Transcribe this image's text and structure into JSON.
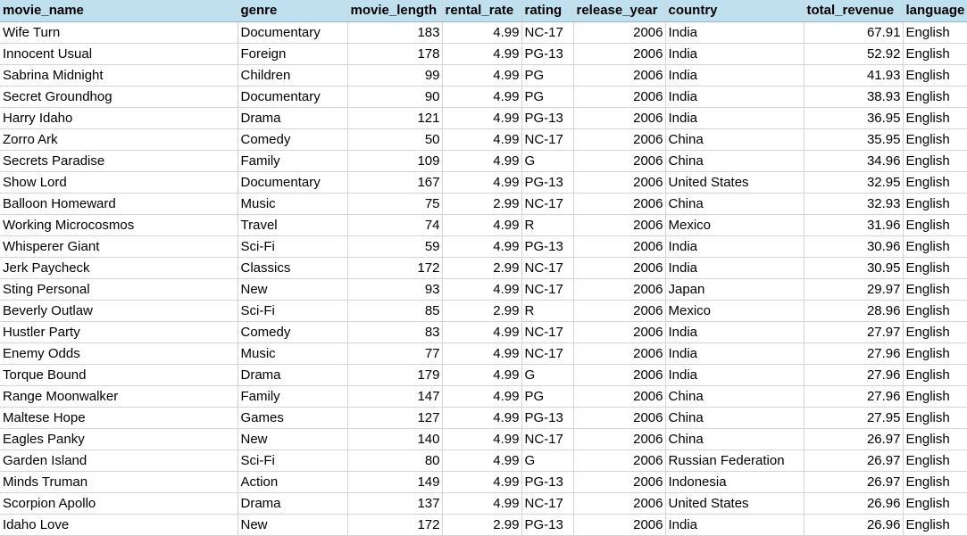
{
  "columns": [
    "movie_name",
    "genre",
    "movie_length",
    "rental_rate",
    "rating",
    "release_year",
    "country",
    "total_revenue",
    "language"
  ],
  "rows": [
    [
      "Wife Turn",
      "Documentary",
      "183",
      "4.99",
      "NC-17",
      "2006",
      "India",
      "67.91",
      "English"
    ],
    [
      "Innocent Usual",
      "Foreign",
      "178",
      "4.99",
      "PG-13",
      "2006",
      "India",
      "52.92",
      "English"
    ],
    [
      "Sabrina Midnight",
      "Children",
      "99",
      "4.99",
      "PG",
      "2006",
      "India",
      "41.93",
      "English"
    ],
    [
      "Secret Groundhog",
      "Documentary",
      "90",
      "4.99",
      "PG",
      "2006",
      "India",
      "38.93",
      "English"
    ],
    [
      "Harry Idaho",
      "Drama",
      "121",
      "4.99",
      "PG-13",
      "2006",
      "India",
      "36.95",
      "English"
    ],
    [
      "Zorro Ark",
      "Comedy",
      "50",
      "4.99",
      "NC-17",
      "2006",
      "China",
      "35.95",
      "English"
    ],
    [
      "Secrets Paradise",
      "Family",
      "109",
      "4.99",
      "G",
      "2006",
      "China",
      "34.96",
      "English"
    ],
    [
      "Show Lord",
      "Documentary",
      "167",
      "4.99",
      "PG-13",
      "2006",
      "United States",
      "32.95",
      "English"
    ],
    [
      "Balloon Homeward",
      "Music",
      "75",
      "2.99",
      "NC-17",
      "2006",
      "China",
      "32.93",
      "English"
    ],
    [
      "Working Microcosmos",
      "Travel",
      "74",
      "4.99",
      "R",
      "2006",
      "Mexico",
      "31.96",
      "English"
    ],
    [
      "Whisperer Giant",
      "Sci-Fi",
      "59",
      "4.99",
      "PG-13",
      "2006",
      "India",
      "30.96",
      "English"
    ],
    [
      "Jerk Paycheck",
      "Classics",
      "172",
      "2.99",
      "NC-17",
      "2006",
      "India",
      "30.95",
      "English"
    ],
    [
      "Sting Personal",
      "New",
      "93",
      "4.99",
      "NC-17",
      "2006",
      "Japan",
      "29.97",
      "English"
    ],
    [
      "Beverly Outlaw",
      "Sci-Fi",
      "85",
      "2.99",
      "R",
      "2006",
      "Mexico",
      "28.96",
      "English"
    ],
    [
      "Hustler Party",
      "Comedy",
      "83",
      "4.99",
      "NC-17",
      "2006",
      "India",
      "27.97",
      "English"
    ],
    [
      "Enemy Odds",
      "Music",
      "77",
      "4.99",
      "NC-17",
      "2006",
      "India",
      "27.96",
      "English"
    ],
    [
      "Torque Bound",
      "Drama",
      "179",
      "4.99",
      "G",
      "2006",
      "India",
      "27.96",
      "English"
    ],
    [
      "Range Moonwalker",
      "Family",
      "147",
      "4.99",
      "PG",
      "2006",
      "China",
      "27.96",
      "English"
    ],
    [
      "Maltese Hope",
      "Games",
      "127",
      "4.99",
      "PG-13",
      "2006",
      "China",
      "27.95",
      "English"
    ],
    [
      "Eagles Panky",
      "New",
      "140",
      "4.99",
      "NC-17",
      "2006",
      "China",
      "26.97",
      "English"
    ],
    [
      "Garden Island",
      "Sci-Fi",
      "80",
      "4.99",
      "G",
      "2006",
      "Russian Federation",
      "26.97",
      "English"
    ],
    [
      "Minds Truman",
      "Action",
      "149",
      "4.99",
      "PG-13",
      "2006",
      "Indonesia",
      "26.97",
      "English"
    ],
    [
      "Scorpion Apollo",
      "Drama",
      "137",
      "4.99",
      "NC-17",
      "2006",
      "United States",
      "26.96",
      "English"
    ],
    [
      "Idaho Love",
      "New",
      "172",
      "2.99",
      "PG-13",
      "2006",
      "India",
      "26.96",
      "English"
    ]
  ]
}
